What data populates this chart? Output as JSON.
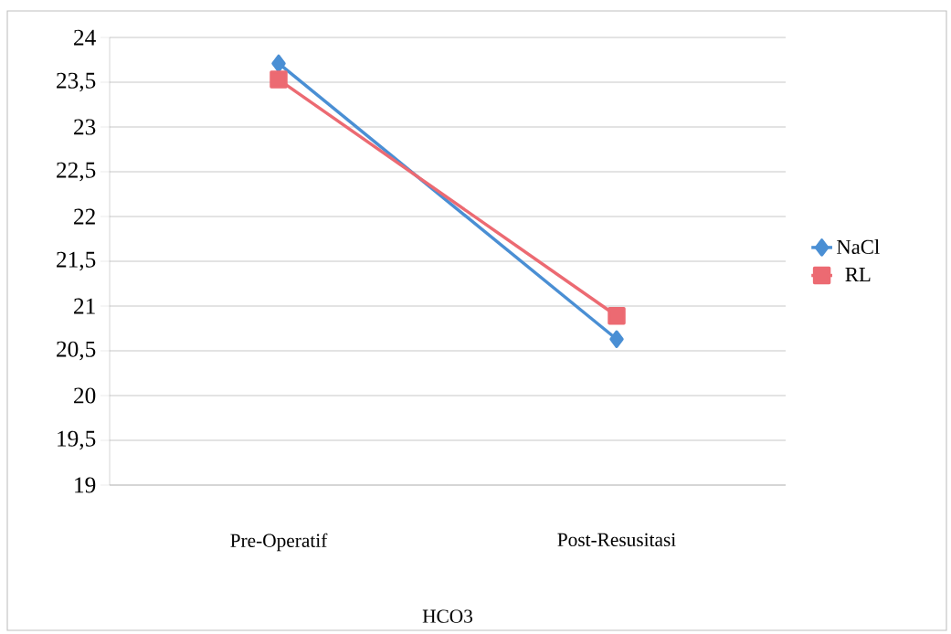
{
  "chart_data": {
    "type": "line",
    "xlabel": "HCO3",
    "categories": [
      "Pre-Operatif",
      "Post-Resusitasi"
    ],
    "series": [
      {
        "name": "NaCl",
        "color": "#4a8fd4",
        "marker": "diamond",
        "values": [
          23.71,
          20.63
        ]
      },
      {
        "name": "RL",
        "color": "#ec6a72",
        "marker": "square",
        "values": [
          23.53,
          20.89
        ]
      }
    ],
    "ylim": [
      19,
      24
    ],
    "yticks": [
      19,
      {
        "value": 19.5,
        "label": "19,5"
      },
      20,
      {
        "value": 20.5,
        "label": "20,5"
      },
      21,
      {
        "value": 21.5,
        "label": "21,5"
      },
      22,
      {
        "value": 22.5,
        "label": "22,5"
      },
      23,
      {
        "value": 23.5,
        "label": "23,5"
      },
      24
    ],
    "grid": "y",
    "legend": "right",
    "line_style": "solid"
  }
}
